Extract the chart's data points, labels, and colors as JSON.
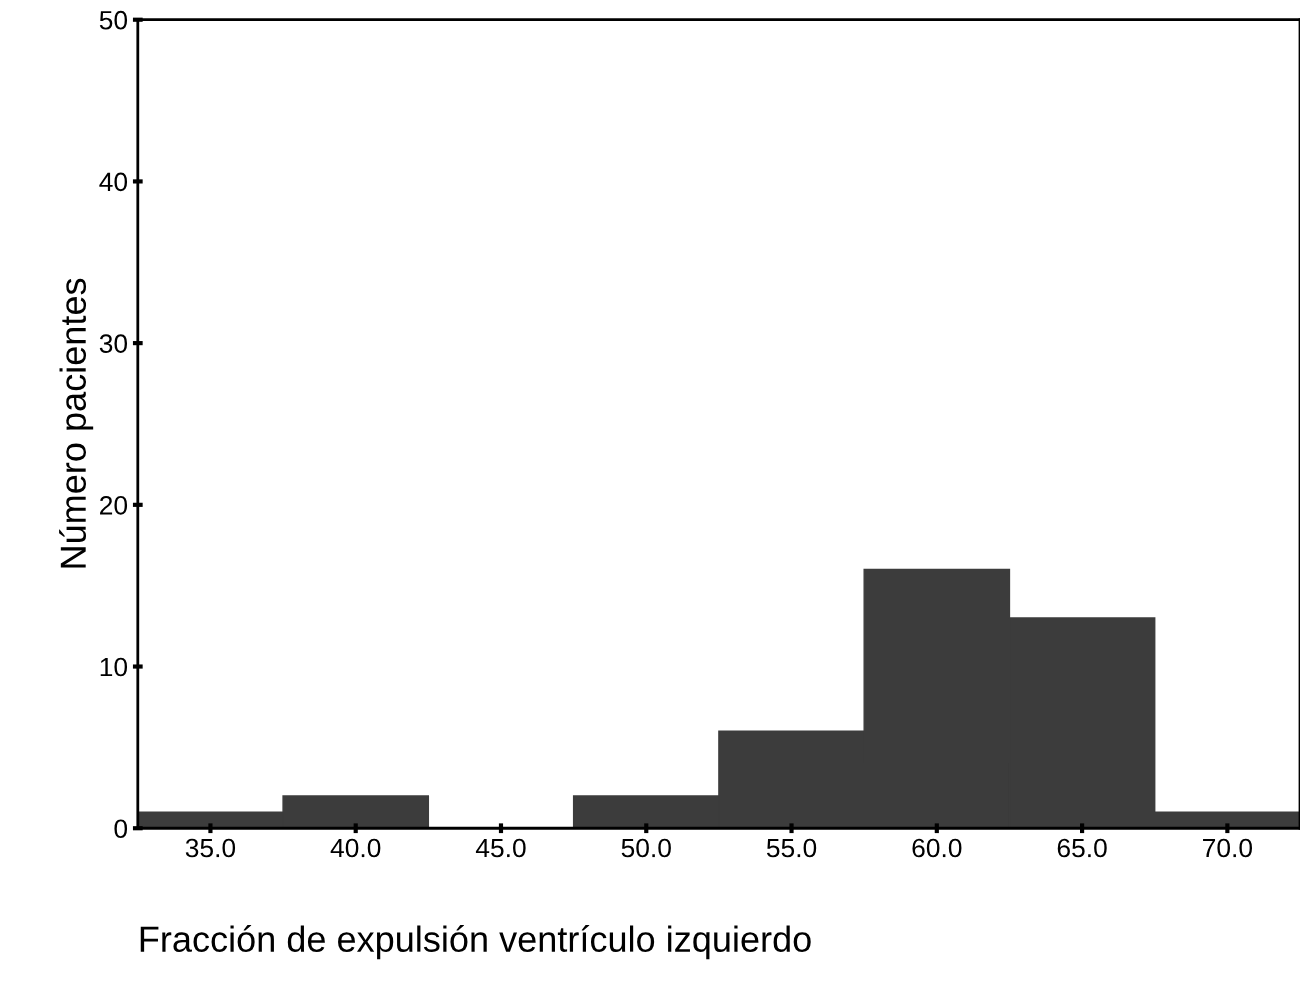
{
  "chart_data": {
    "type": "histogram",
    "xlabel": "Fracción de expulsión ventrículo izquierdo",
    "ylabel": "Número pacientes",
    "bins": [
      32.5,
      37.5,
      42.5,
      47.5,
      52.5,
      57.5,
      62.5,
      67.5,
      72.5
    ],
    "values": [
      1,
      2,
      0,
      2,
      6,
      16,
      13,
      1
    ],
    "color": "#3c3c3c",
    "xlim": [
      32.5,
      72.5
    ],
    "xticks": [
      {
        "value": 35,
        "label": "35.0"
      },
      {
        "value": 40,
        "label": "40.0"
      },
      {
        "value": 45,
        "label": "45.0"
      },
      {
        "value": 50,
        "label": "50.0"
      },
      {
        "value": 55,
        "label": "55.0"
      },
      {
        "value": 60,
        "label": "60.0"
      },
      {
        "value": 65,
        "label": "65.0"
      },
      {
        "value": 70,
        "label": "70.0"
      }
    ],
    "ylim": [
      0,
      50
    ],
    "yticks": [
      0,
      10,
      20,
      30,
      40,
      50
    ],
    "grid": false
  }
}
